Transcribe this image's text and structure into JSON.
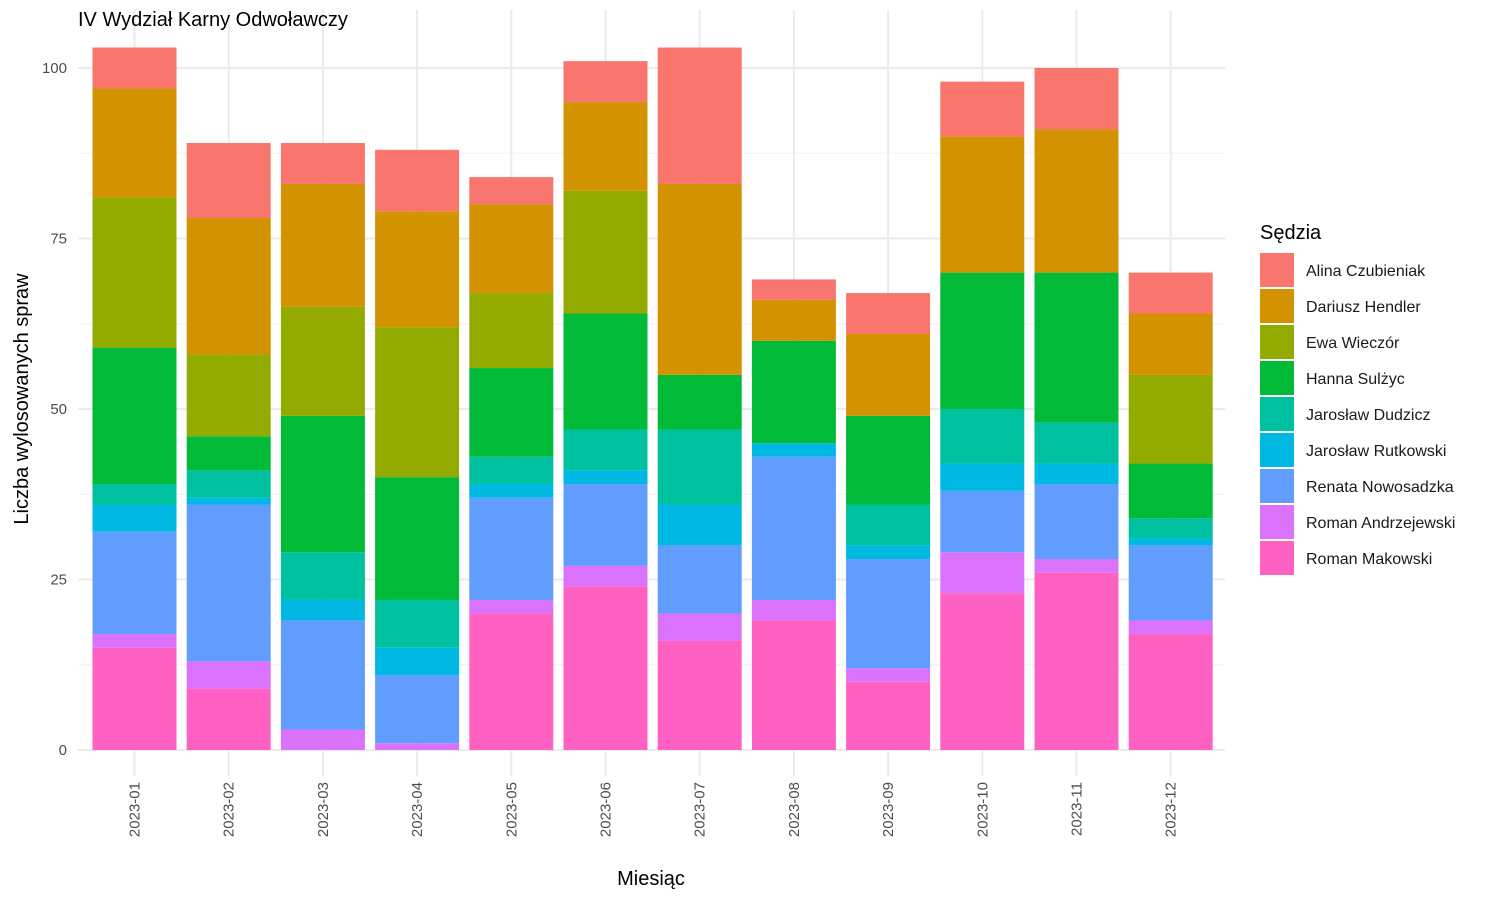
{
  "chart_data": {
    "type": "bar",
    "stacked": true,
    "title": "IV Wydział Karny Odwoławczy",
    "xlabel": "Miesiąc",
    "ylabel": "Liczba wylosowanych spraw",
    "ylim": [
      0,
      103
    ],
    "yticks": [
      0,
      25,
      50,
      75,
      100
    ],
    "grid": true,
    "legend": {
      "title": "Sędzia",
      "position": "right"
    },
    "categories": [
      "2023-01",
      "2023-02",
      "2023-03",
      "2023-04",
      "2023-05",
      "2023-06",
      "2023-07",
      "2023-08",
      "2023-09",
      "2023-10",
      "2023-11",
      "2023-12"
    ],
    "series": [
      {
        "name": "Roman Makowski",
        "color": "#FF61C3",
        "values": [
          15,
          9,
          0,
          0,
          20,
          24,
          16,
          19,
          10,
          23,
          26,
          17
        ]
      },
      {
        "name": "Roman Andrzejewski",
        "color": "#DB72FB",
        "values": [
          2,
          4,
          3,
          1,
          2,
          3,
          4,
          3,
          2,
          6,
          2,
          2
        ]
      },
      {
        "name": "Renata Nowosadzka",
        "color": "#619CFF",
        "values": [
          15,
          23,
          16,
          10,
          15,
          12,
          10,
          21,
          16,
          9,
          11,
          11
        ]
      },
      {
        "name": "Jarosław Rutkowski",
        "color": "#00B9E3",
        "values": [
          4,
          1,
          3,
          4,
          2,
          2,
          6,
          2,
          2,
          4,
          3,
          1
        ]
      },
      {
        "name": "Jarosław Dudzicz",
        "color": "#00C19F",
        "values": [
          3,
          4,
          7,
          7,
          4,
          6,
          11,
          0,
          6,
          8,
          6,
          3
        ]
      },
      {
        "name": "Hanna Sulżyc",
        "color": "#00BA38",
        "values": [
          20,
          5,
          20,
          18,
          13,
          17,
          8,
          15,
          13,
          20,
          22,
          8
        ]
      },
      {
        "name": "Ewa Wieczór",
        "color": "#93AA00",
        "values": [
          22,
          12,
          16,
          22,
          11,
          18,
          0,
          0,
          0,
          0,
          0,
          13
        ]
      },
      {
        "name": "Dariusz Hendler",
        "color": "#D39200",
        "values": [
          16,
          20,
          18,
          17,
          13,
          13,
          28,
          6,
          12,
          20,
          21,
          9
        ]
      },
      {
        "name": "Alina Czubieniak",
        "color": "#F8766D",
        "values": [
          6,
          11,
          6,
          9,
          4,
          6,
          20,
          3,
          6,
          8,
          9,
          6
        ]
      }
    ]
  }
}
